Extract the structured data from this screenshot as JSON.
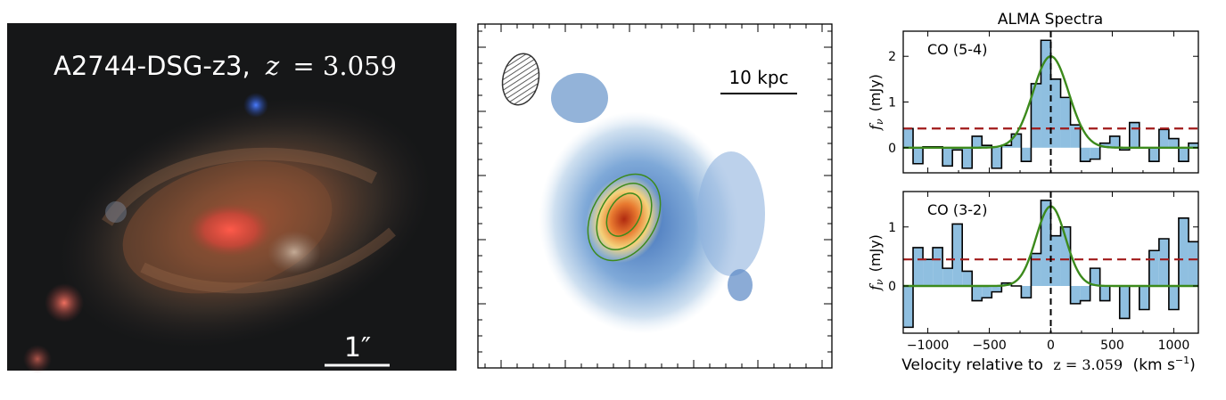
{
  "panel_a": {
    "object_name": "A2744-DSG-z3,",
    "redshift_symbol": "z",
    "redshift_equals": "= 3.059",
    "scale_bar_label": "1″"
  },
  "panel_b": {
    "scale_bar_label": "10 kpc"
  },
  "colors": {
    "step_fill": "#8fbfe0",
    "step_line": "#000000",
    "fit_line": "#3c8a1c",
    "threshold_line": "#a11a1a",
    "zero_line": "#000000"
  },
  "chart_data": [
    {
      "type": "bar",
      "title": "ALMA Spectra",
      "annotation": "CO (5-4)",
      "ylabel_symbol": "f",
      "ylabel_sub": "ν",
      "ylabel_unit": "(mJy)",
      "yticks": [
        "0",
        "1",
        "2"
      ],
      "ylim": [
        -0.55,
        2.55
      ],
      "xlim": [
        -1200,
        1200
      ],
      "threshold": 0.42,
      "bins": [
        {
          "x": -1160,
          "y": 0.42
        },
        {
          "x": -1080,
          "y": -0.35
        },
        {
          "x": -1000,
          "y": 0.02
        },
        {
          "x": -920,
          "y": 0.02
        },
        {
          "x": -840,
          "y": -0.4
        },
        {
          "x": -760,
          "y": -0.05
        },
        {
          "x": -680,
          "y": -0.45
        },
        {
          "x": -600,
          "y": 0.25
        },
        {
          "x": -520,
          "y": 0.05
        },
        {
          "x": -440,
          "y": -0.45
        },
        {
          "x": -360,
          "y": 0.05
        },
        {
          "x": -280,
          "y": 0.3
        },
        {
          "x": -200,
          "y": -0.3
        },
        {
          "x": -120,
          "y": 1.4
        },
        {
          "x": -40,
          "y": 2.35
        },
        {
          "x": 40,
          "y": 1.5
        },
        {
          "x": 120,
          "y": 1.1
        },
        {
          "x": 200,
          "y": 0.5
        },
        {
          "x": 280,
          "y": -0.3
        },
        {
          "x": 360,
          "y": -0.25
        },
        {
          "x": 440,
          "y": 0.1
        },
        {
          "x": 520,
          "y": 0.25
        },
        {
          "x": 600,
          "y": -0.05
        },
        {
          "x": 680,
          "y": 0.55
        },
        {
          "x": 760,
          "y": 0.0
        },
        {
          "x": 840,
          "y": -0.3
        },
        {
          "x": 920,
          "y": 0.4
        },
        {
          "x": 1000,
          "y": 0.2
        },
        {
          "x": 1080,
          "y": -0.3
        },
        {
          "x": 1160,
          "y": 0.1
        }
      ],
      "fit": {
        "amplitude": 2.0,
        "center": 0,
        "sigma": 145
      }
    },
    {
      "type": "bar",
      "annotation": "CO (3-2)",
      "ylabel_symbol": "f",
      "ylabel_sub": "ν",
      "ylabel_unit": "(mJy)",
      "yticks": [
        "0",
        "1"
      ],
      "xticks": [
        "−1000",
        "−500",
        "0",
        "500",
        "1000"
      ],
      "xlabel_prefix": "Velocity relative to",
      "xlabel_z": "z = 3.059",
      "xlabel_unit": "(km s",
      "xlabel_exp": "−1",
      "xlabel_close": ")",
      "ylim": [
        -0.8,
        1.6
      ],
      "xlim": [
        -1200,
        1200
      ],
      "threshold": 0.45,
      "bins": [
        {
          "x": -1160,
          "y": -0.7
        },
        {
          "x": -1080,
          "y": 0.65
        },
        {
          "x": -1000,
          "y": 0.45
        },
        {
          "x": -920,
          "y": 0.65
        },
        {
          "x": -840,
          "y": 0.3
        },
        {
          "x": -760,
          "y": 1.05
        },
        {
          "x": -680,
          "y": 0.25
        },
        {
          "x": -600,
          "y": -0.25
        },
        {
          "x": -520,
          "y": -0.2
        },
        {
          "x": -440,
          "y": -0.1
        },
        {
          "x": -360,
          "y": 0.05
        },
        {
          "x": -280,
          "y": 0.0
        },
        {
          "x": -200,
          "y": -0.2
        },
        {
          "x": -120,
          "y": 0.55
        },
        {
          "x": -40,
          "y": 1.45
        },
        {
          "x": 40,
          "y": 0.85
        },
        {
          "x": 120,
          "y": 1.0
        },
        {
          "x": 200,
          "y": -0.3
        },
        {
          "x": 280,
          "y": -0.25
        },
        {
          "x": 360,
          "y": 0.3
        },
        {
          "x": 440,
          "y": -0.25
        },
        {
          "x": 520,
          "y": 0.0
        },
        {
          "x": 600,
          "y": -0.55
        },
        {
          "x": 680,
          "y": 0.0
        },
        {
          "x": 760,
          "y": -0.4
        },
        {
          "x": 840,
          "y": 0.6
        },
        {
          "x": 920,
          "y": 0.8
        },
        {
          "x": 1000,
          "y": -0.4
        },
        {
          "x": 1080,
          "y": 1.15
        },
        {
          "x": 1160,
          "y": 0.75
        }
      ],
      "fit": {
        "amplitude": 1.35,
        "center": 0,
        "sigma": 120
      }
    }
  ]
}
